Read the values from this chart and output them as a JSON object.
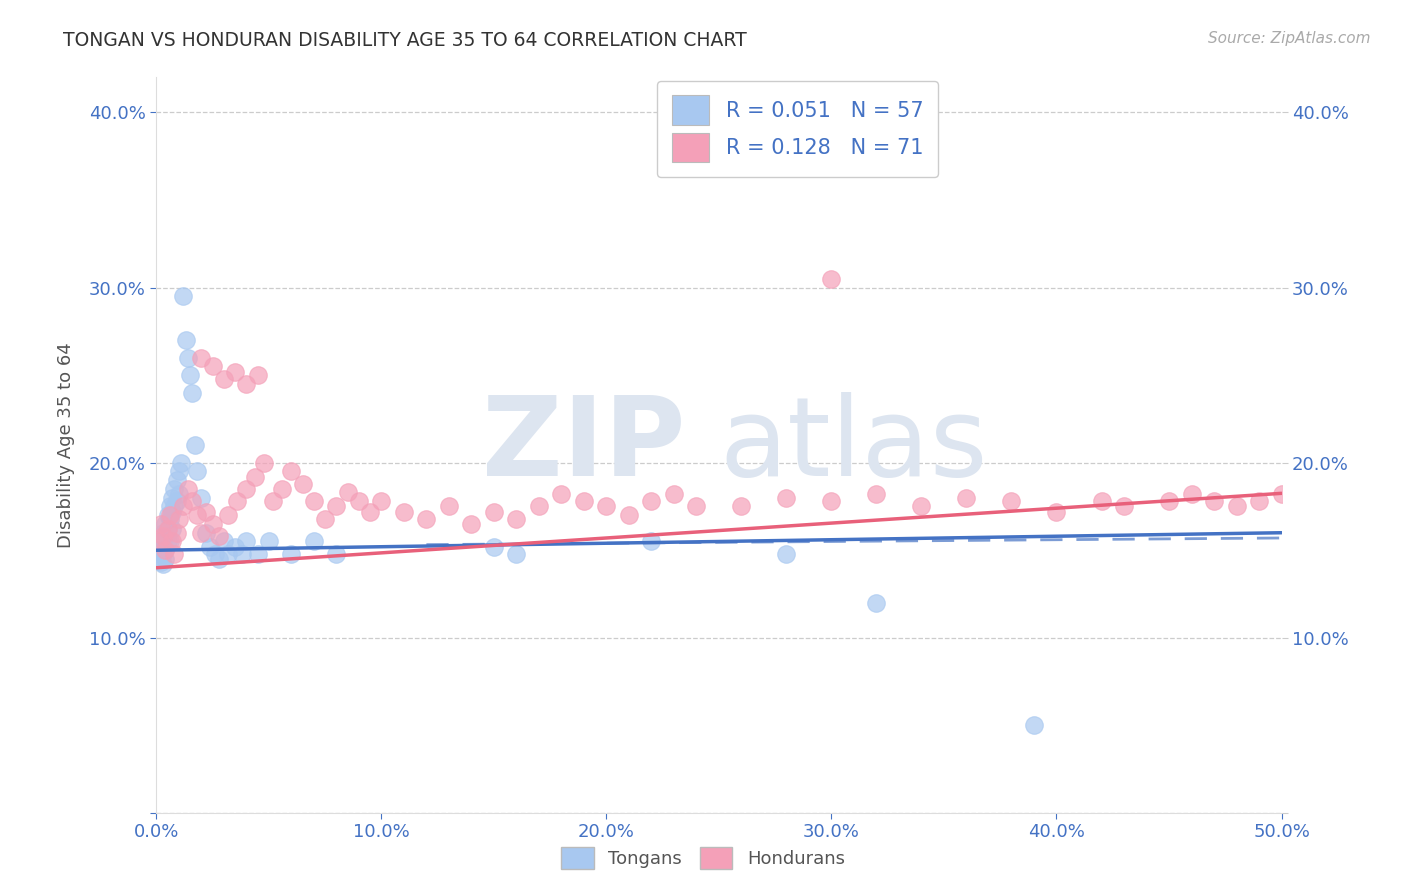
{
  "title": "TONGAN VS HONDURAN DISABILITY AGE 35 TO 64 CORRELATION CHART",
  "source": "Source: ZipAtlas.com",
  "ylabel_label": "Disability Age 35 to 64",
  "xlim": [
    0.0,
    0.5
  ],
  "ylim": [
    0.0,
    0.42
  ],
  "xticklabels": [
    "0.0%",
    "10.0%",
    "20.0%",
    "30.0%",
    "40.0%",
    "50.0%"
  ],
  "yticklabels": [
    "",
    "10.0%",
    "20.0%",
    "30.0%",
    "40.0%"
  ],
  "tongan_color": "#A8C8F0",
  "honduran_color": "#F4A0B8",
  "tongan_line_color": "#4472C4",
  "honduran_line_color": "#E8607A",
  "tongan_R": 0.051,
  "tongan_N": 57,
  "honduran_R": 0.128,
  "honduran_N": 71,
  "legend_label1": "Tongans",
  "legend_label2": "Hondurans",
  "tongan_x": [
    0.001,
    0.001,
    0.002,
    0.002,
    0.002,
    0.003,
    0.003,
    0.003,
    0.003,
    0.004,
    0.004,
    0.004,
    0.004,
    0.005,
    0.005,
    0.005,
    0.006,
    0.006,
    0.006,
    0.007,
    0.007,
    0.007,
    0.008,
    0.008,
    0.009,
    0.009,
    0.01,
    0.01,
    0.011,
    0.012,
    0.013,
    0.014,
    0.015,
    0.016,
    0.017,
    0.018,
    0.02,
    0.022,
    0.024,
    0.026,
    0.028,
    0.03,
    0.032,
    0.035,
    0.038,
    0.04,
    0.045,
    0.05,
    0.06,
    0.07,
    0.08,
    0.15,
    0.16,
    0.22,
    0.28,
    0.32,
    0.39
  ],
  "tongan_y": [
    0.15,
    0.155,
    0.148,
    0.152,
    0.143,
    0.16,
    0.155,
    0.148,
    0.142,
    0.165,
    0.158,
    0.15,
    0.145,
    0.17,
    0.162,
    0.155,
    0.175,
    0.168,
    0.155,
    0.18,
    0.172,
    0.162,
    0.185,
    0.175,
    0.19,
    0.178,
    0.195,
    0.182,
    0.2,
    0.295,
    0.27,
    0.26,
    0.25,
    0.24,
    0.21,
    0.195,
    0.18,
    0.16,
    0.152,
    0.148,
    0.145,
    0.155,
    0.148,
    0.152,
    0.148,
    0.155,
    0.148,
    0.155,
    0.148,
    0.155,
    0.148,
    0.152,
    0.148,
    0.155,
    0.148,
    0.12,
    0.05
  ],
  "honduran_x": [
    0.001,
    0.002,
    0.003,
    0.004,
    0.005,
    0.006,
    0.007,
    0.008,
    0.009,
    0.01,
    0.012,
    0.014,
    0.016,
    0.018,
    0.02,
    0.022,
    0.025,
    0.028,
    0.032,
    0.036,
    0.04,
    0.044,
    0.048,
    0.052,
    0.056,
    0.06,
    0.065,
    0.07,
    0.075,
    0.08,
    0.085,
    0.09,
    0.095,
    0.1,
    0.11,
    0.12,
    0.13,
    0.14,
    0.15,
    0.16,
    0.17,
    0.18,
    0.19,
    0.2,
    0.21,
    0.22,
    0.23,
    0.24,
    0.26,
    0.28,
    0.3,
    0.32,
    0.34,
    0.36,
    0.38,
    0.4,
    0.42,
    0.43,
    0.45,
    0.46,
    0.47,
    0.48,
    0.49,
    0.5,
    0.02,
    0.025,
    0.03,
    0.035,
    0.04,
    0.045,
    0.3
  ],
  "honduran_y": [
    0.155,
    0.165,
    0.158,
    0.15,
    0.162,
    0.17,
    0.155,
    0.148,
    0.16,
    0.168,
    0.175,
    0.185,
    0.178,
    0.17,
    0.16,
    0.172,
    0.165,
    0.158,
    0.17,
    0.178,
    0.185,
    0.192,
    0.2,
    0.178,
    0.185,
    0.195,
    0.188,
    0.178,
    0.168,
    0.175,
    0.183,
    0.178,
    0.172,
    0.178,
    0.172,
    0.168,
    0.175,
    0.165,
    0.172,
    0.168,
    0.175,
    0.182,
    0.178,
    0.175,
    0.17,
    0.178,
    0.182,
    0.175,
    0.175,
    0.18,
    0.178,
    0.182,
    0.175,
    0.18,
    0.178,
    0.172,
    0.178,
    0.175,
    0.178,
    0.182,
    0.178,
    0.175,
    0.178,
    0.182,
    0.26,
    0.255,
    0.248,
    0.252,
    0.245,
    0.25,
    0.305
  ]
}
